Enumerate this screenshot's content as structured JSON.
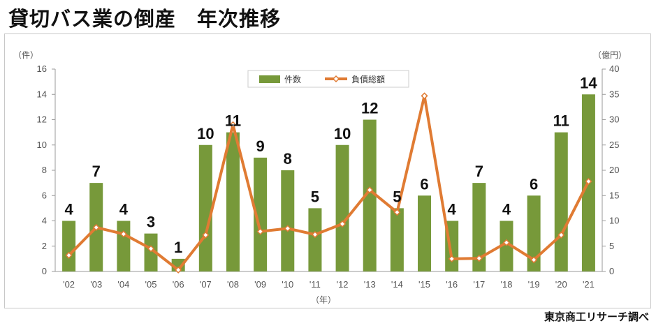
{
  "title": "貸切バス業の倒産　年次推移",
  "source": "東京商工リサーチ調べ",
  "chart_data": {
    "type": "bar",
    "categories": [
      "'02",
      "'03",
      "'04",
      "'05",
      "'06",
      "'07",
      "'08",
      "'09",
      "'10",
      "'11",
      "'12",
      "'13",
      "'14",
      "'15",
      "'16",
      "'17",
      "'18",
      "'19",
      "'20",
      "'21"
    ],
    "series": [
      {
        "name": "件数",
        "type": "bar",
        "axis": "left",
        "color": "#77993a",
        "values": [
          4,
          7,
          4,
          3,
          1,
          10,
          11,
          9,
          8,
          5,
          10,
          12,
          5,
          6,
          4,
          7,
          4,
          6,
          11,
          14
        ]
      },
      {
        "name": "負債総額",
        "type": "line",
        "axis": "right",
        "color": "#e07b33",
        "values": [
          3.2,
          8.7,
          7.4,
          4.5,
          0.3,
          7.2,
          29,
          7.9,
          8.5,
          7.3,
          9.4,
          16.1,
          11.7,
          34.7,
          2.5,
          2.6,
          5.7,
          2.3,
          7.2,
          17.8
        ]
      }
    ],
    "data_labels": [
      "4",
      "7",
      "4",
      "3",
      "1",
      "10",
      "11",
      "9",
      "8",
      "5",
      "10",
      "12",
      "5",
      "6",
      "4",
      "7",
      "4",
      "6",
      "11",
      "14"
    ],
    "left_axis": {
      "unit": "（件）",
      "ylim": [
        0,
        16
      ],
      "ticks": [
        "0",
        "2",
        "4",
        "6",
        "8",
        "10",
        "12",
        "14",
        "16"
      ]
    },
    "right_axis": {
      "unit": "（億円）",
      "ylim": [
        0,
        40
      ],
      "ticks": [
        "0",
        "5",
        "10",
        "15",
        "20",
        "25",
        "30",
        "35",
        "40"
      ]
    },
    "xlabel": "（年）",
    "legend_position": "top-center"
  }
}
